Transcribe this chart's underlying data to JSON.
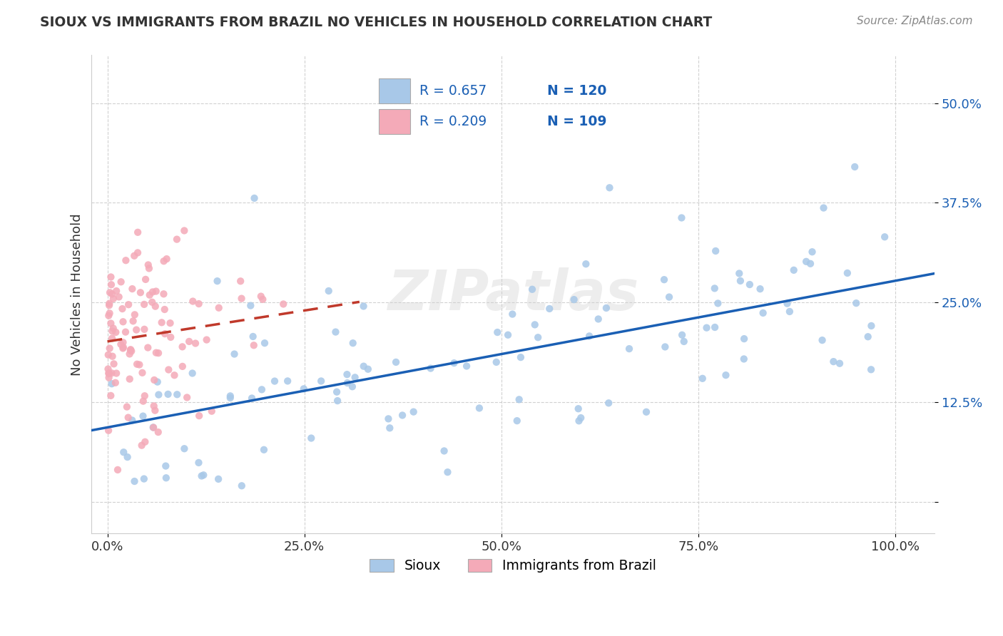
{
  "title": "SIOUX VS IMMIGRANTS FROM BRAZIL NO VEHICLES IN HOUSEHOLD CORRELATION CHART",
  "source": "Source: ZipAtlas.com",
  "ylabel": "No Vehicles in Household",
  "sioux_R": 0.657,
  "sioux_N": 120,
  "brazil_R": 0.209,
  "brazil_N": 109,
  "sioux_color": "#a8c8e8",
  "brazil_color": "#f4aab8",
  "sioux_line_color": "#1a5fb4",
  "brazil_line_color": "#c0392b",
  "background_color": "#ffffff",
  "grid_color": "#cccccc",
  "watermark": "ZIPatlas",
  "blue_text": "#1a5fb4",
  "dark_text": "#333333",
  "source_text": "#888888",
  "xlim": [
    -0.02,
    1.05
  ],
  "ylim": [
    -0.04,
    0.56
  ],
  "xticks": [
    0.0,
    0.25,
    0.5,
    0.75,
    1.0
  ],
  "xtick_labels": [
    "0.0%",
    "25.0%",
    "50.0%",
    "75.0%",
    "100.0%"
  ],
  "yticks": [
    0.0,
    0.125,
    0.25,
    0.375,
    0.5
  ],
  "ytick_labels": [
    "",
    "12.5%",
    "25.0%",
    "37.5%",
    "50.0%"
  ],
  "legend_labels": [
    "Sioux",
    "Immigrants from Brazil"
  ]
}
